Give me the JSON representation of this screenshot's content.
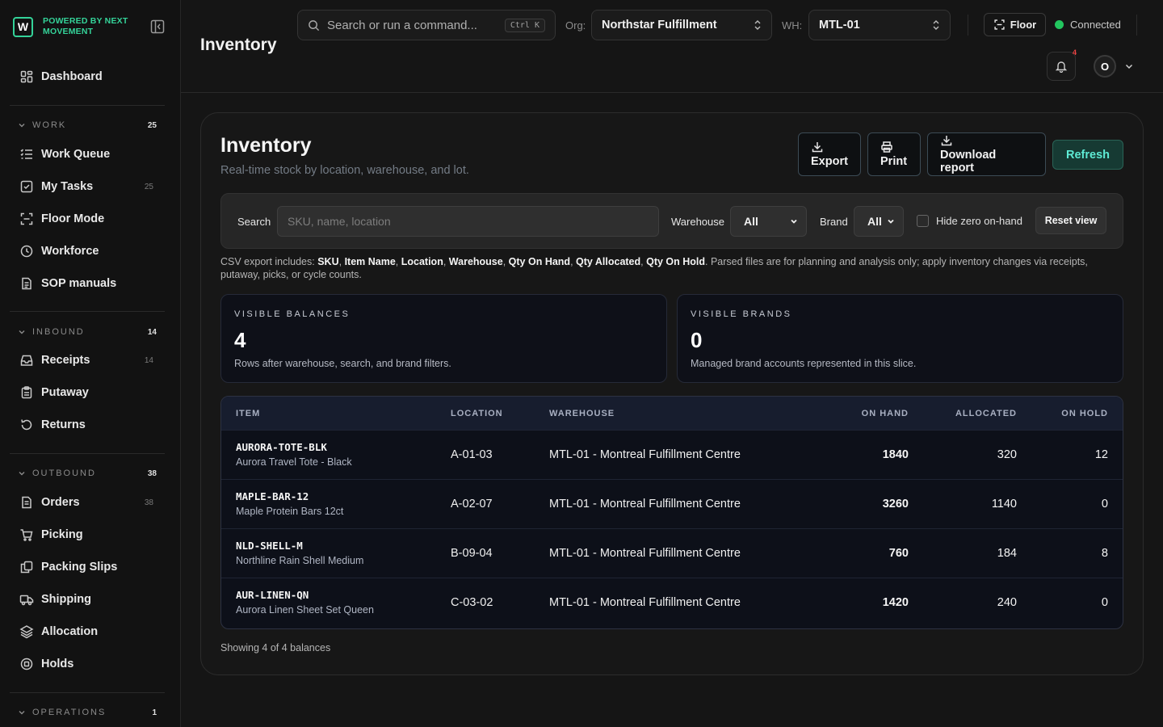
{
  "brand": {
    "logo_letter": "W",
    "tagline": "POWERED BY NEXT MOVEMENT"
  },
  "sidebar": {
    "dashboard": "Dashboard",
    "sections": [
      {
        "title": "WORK",
        "count": "25",
        "items": [
          {
            "label": "Work Queue",
            "count": "",
            "icon": "list-icon"
          },
          {
            "label": "My Tasks",
            "count": "25",
            "icon": "checkbox-icon"
          },
          {
            "label": "Floor Mode",
            "count": "",
            "icon": "scan-icon"
          },
          {
            "label": "Workforce",
            "count": "",
            "icon": "clock-icon"
          },
          {
            "label": "SOP manuals",
            "count": "",
            "icon": "document-icon"
          }
        ]
      },
      {
        "title": "INBOUND",
        "count": "14",
        "items": [
          {
            "label": "Receipts",
            "count": "14",
            "icon": "inbox-icon"
          },
          {
            "label": "Putaway",
            "count": "",
            "icon": "clipboard-icon"
          },
          {
            "label": "Returns",
            "count": "",
            "icon": "rotate-icon"
          }
        ]
      },
      {
        "title": "OUTBOUND",
        "count": "38",
        "items": [
          {
            "label": "Orders",
            "count": "38",
            "icon": "document-icon"
          },
          {
            "label": "Picking",
            "count": "",
            "icon": "cart-icon"
          },
          {
            "label": "Packing Slips",
            "count": "",
            "icon": "copy-icon"
          },
          {
            "label": "Shipping",
            "count": "",
            "icon": "truck-icon"
          },
          {
            "label": "Allocation",
            "count": "",
            "icon": "layers-icon"
          },
          {
            "label": "Holds",
            "count": "",
            "icon": "stop-icon"
          }
        ]
      },
      {
        "title": "OPERATIONS",
        "count": "1",
        "items": []
      }
    ]
  },
  "header": {
    "title": "Inventory",
    "command_placeholder": "Search or run a command...",
    "shortcut": "Ctrl K",
    "org_label": "Org:",
    "org_value": "Northstar Fulfillment",
    "wh_label": "WH:",
    "wh_value": "MTL-01",
    "floor_label": "Floor",
    "status_text": "Connected",
    "status_color": "#22c55e",
    "notification_count": "4",
    "avatar_initial": "O"
  },
  "main": {
    "title": "Inventory",
    "subtitle": "Real-time stock by location, warehouse, and lot.",
    "buttons": {
      "export": "Export",
      "print": "Print",
      "download": "Download report",
      "refresh": "Refresh"
    },
    "filters": {
      "search_label": "Search",
      "search_placeholder": "SKU, name, location",
      "warehouse_label": "Warehouse",
      "warehouse_value": "All",
      "brand_label": "Brand",
      "brand_value": "All",
      "hide_zero_label": "Hide zero on-hand",
      "reset_label": "Reset view"
    },
    "csv_note": {
      "prefix": "CSV export includes: ",
      "fields": [
        "SKU",
        "Item Name",
        "Location",
        "Warehouse",
        "Qty On Hand",
        "Qty Allocated",
        "Qty On Hold"
      ],
      "suffix": ". Parsed files are for planning and analysis only; apply inventory changes via receipts, putaway, picks, or cycle counts."
    },
    "stats": [
      {
        "label": "VISIBLE BALANCES",
        "value": "4",
        "desc": "Rows after warehouse, search, and brand filters."
      },
      {
        "label": "VISIBLE BRANDS",
        "value": "0",
        "desc": "Managed brand accounts represented in this slice."
      }
    ],
    "table": {
      "columns": [
        "ITEM",
        "LOCATION",
        "WAREHOUSE",
        "ON HAND",
        "ALLOCATED",
        "ON HOLD"
      ],
      "rows": [
        {
          "sku": "AURORA-TOTE-BLK",
          "name": "Aurora Travel Tote - Black",
          "location": "A-01-03",
          "warehouse": "MTL-01 - Montreal Fulfillment Centre",
          "on_hand": "1840",
          "allocated": "320",
          "on_hold": "12"
        },
        {
          "sku": "MAPLE-BAR-12",
          "name": "Maple Protein Bars 12ct",
          "location": "A-02-07",
          "warehouse": "MTL-01 - Montreal Fulfillment Centre",
          "on_hand": "3260",
          "allocated": "1140",
          "on_hold": "0"
        },
        {
          "sku": "NLD-SHELL-M",
          "name": "Northline Rain Shell Medium",
          "location": "B-09-04",
          "warehouse": "MTL-01 - Montreal Fulfillment Centre",
          "on_hand": "760",
          "allocated": "184",
          "on_hold": "8"
        },
        {
          "sku": "AUR-LINEN-QN",
          "name": "Aurora Linen Sheet Set Queen",
          "location": "C-03-02",
          "warehouse": "MTL-01 - Montreal Fulfillment Centre",
          "on_hand": "1420",
          "allocated": "240",
          "on_hold": "0"
        }
      ]
    },
    "footer": "Showing 4 of 4 balances"
  }
}
